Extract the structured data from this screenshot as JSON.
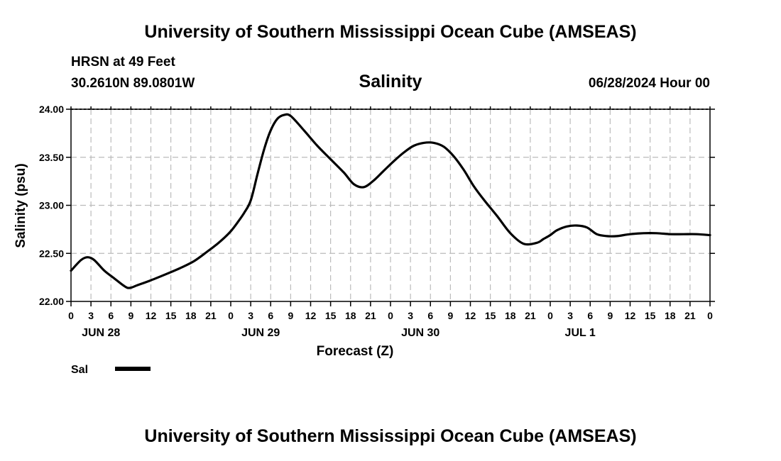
{
  "header": {
    "title": "University of Southern Mississippi Ocean Cube (AMSEAS)",
    "station": "HRSN at 49 Feet",
    "coords": "30.2610N  89.0801W",
    "variable": "Salinity",
    "datetime": "06/28/2024 Hour 00"
  },
  "footer": {
    "title": "University of Southern Mississippi Ocean Cube (AMSEAS)"
  },
  "colors": {
    "line": "#000000",
    "grid": "#bbbbbb"
  },
  "chart_data": {
    "type": "line",
    "title": "Salinity",
    "xlabel": "Forecast (Z)",
    "ylabel": "Salinity (psu)",
    "xlim": [
      0,
      96
    ],
    "ylim": [
      22.0,
      24.0
    ],
    "y_ticks": [
      "22.00",
      "22.50",
      "23.00",
      "23.50",
      "24.00"
    ],
    "x_tick_step_hours": 3,
    "x_tick_labels": [
      "0",
      "3",
      "6",
      "9",
      "12",
      "15",
      "18",
      "21",
      "0",
      "3",
      "6",
      "9",
      "12",
      "15",
      "18",
      "21",
      "0",
      "3",
      "6",
      "9",
      "12",
      "15",
      "18",
      "21",
      "0",
      "3",
      "6",
      "9",
      "12",
      "15",
      "18",
      "21",
      "0"
    ],
    "day_labels": [
      {
        "hour": 4.5,
        "label": "JUN 28"
      },
      {
        "hour": 28.5,
        "label": "JUN 29"
      },
      {
        "hour": 52.5,
        "label": "JUN 30"
      },
      {
        "hour": 76.5,
        "label": "JUL 1"
      }
    ],
    "grid": true,
    "legend": {
      "placement": "bottom-left",
      "entries": [
        {
          "name": "Sal"
        }
      ]
    },
    "series": [
      {
        "name": "Sal",
        "x": [
          0,
          1.5,
          2.5,
          3.5,
          5,
          6.5,
          8,
          8.8,
          10,
          12,
          14.5,
          16.5,
          18.5,
          20.5,
          22,
          23,
          24,
          25,
          26,
          27,
          28,
          29,
          30,
          31,
          32,
          33,
          35,
          37,
          39,
          41,
          42.5,
          44,
          45.5,
          47,
          48.5,
          50,
          51.5,
          53,
          54.5,
          56,
          57.5,
          59,
          60.5,
          62,
          64,
          66,
          68,
          70,
          71,
          72,
          73,
          74.5,
          76,
          77.5,
          79,
          80.5,
          82,
          84,
          86,
          88,
          90,
          92,
          94,
          96
        ],
        "values": [
          22.32,
          22.43,
          22.46,
          22.43,
          22.32,
          22.24,
          22.16,
          22.14,
          22.17,
          22.22,
          22.29,
          22.35,
          22.42,
          22.52,
          22.6,
          22.66,
          22.73,
          22.82,
          22.92,
          23.05,
          23.32,
          23.58,
          23.78,
          23.9,
          23.94,
          23.93,
          23.78,
          23.62,
          23.48,
          23.34,
          23.22,
          23.19,
          23.26,
          23.36,
          23.46,
          23.55,
          23.62,
          23.65,
          23.65,
          23.61,
          23.51,
          23.37,
          23.2,
          23.06,
          22.89,
          22.71,
          22.6,
          22.61,
          22.65,
          22.69,
          22.74,
          22.78,
          22.79,
          22.77,
          22.7,
          22.68,
          22.68,
          22.7,
          22.71,
          22.71,
          22.7,
          22.7,
          22.7,
          22.69
        ]
      }
    ]
  }
}
